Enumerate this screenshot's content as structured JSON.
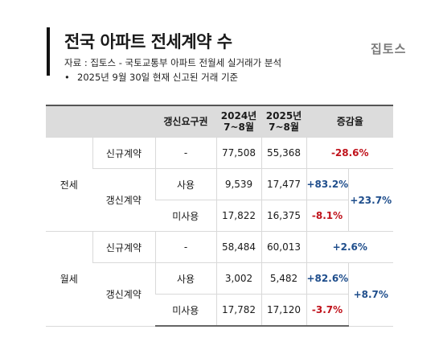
{
  "header": {
    "title": "전국 아파트 전세계약 수",
    "source": "자료 : 집토스 - 국토교통부 아파트 전월세 실거래가 분석",
    "note_bullet": "•",
    "note": "2025년 9월 30일 현재 신고된 거래 기준",
    "logo": "집토스"
  },
  "table": {
    "columns": [
      "",
      "",
      "갱신요구권",
      "2024년\n7~8월",
      "2025년\n7~8월",
      "증감율"
    ],
    "groups": [
      {
        "label": "전세",
        "rows": [
          {
            "type": "신규계약",
            "right": "-",
            "y2024": "77,508",
            "y2025": "55,368",
            "change": "-28.6%",
            "change_dir": "neg"
          },
          {
            "type": "갱신계약",
            "right": "사용",
            "y2024": "9,539",
            "y2025": "17,477",
            "change": "+83.2%",
            "change_dir": "pos",
            "total": "+23.7%"
          },
          {
            "right": "미사용",
            "y2024": "17,822",
            "y2025": "16,375",
            "change": "-8.1%",
            "change_dir": "neg"
          }
        ]
      },
      {
        "label": "월세",
        "rows": [
          {
            "type": "신규계약",
            "right": "-",
            "y2024": "58,484",
            "y2025": "60,013",
            "change": "+2.6%",
            "change_dir": "pos"
          },
          {
            "type": "갱신계약",
            "right": "사용",
            "y2024": "3,002",
            "y2025": "5,482",
            "change": "+82.6%",
            "change_dir": "pos",
            "total": "+8.7%"
          },
          {
            "right": "미사용",
            "y2024": "17,782",
            "y2025": "17,120",
            "change": "-3.7%",
            "change_dir": "neg"
          }
        ]
      }
    ]
  },
  "colors": {
    "negative": "#c0121b",
    "positive": "#1f4e8c",
    "header_bg": "#dcdcdc"
  }
}
